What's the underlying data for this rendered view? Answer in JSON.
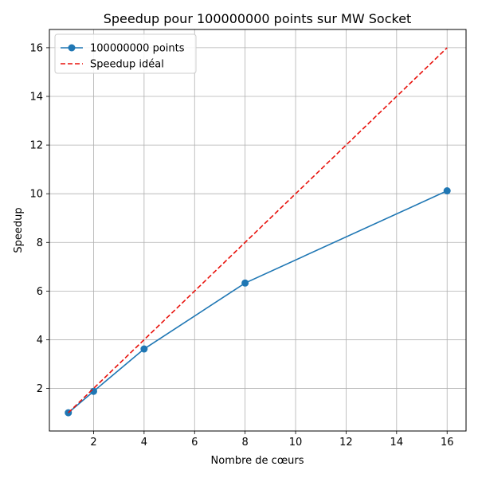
{
  "chart_data": {
    "type": "line",
    "title": "Speedup pour 100000000 points sur MW Socket",
    "xlabel": "Nombre de cœurs",
    "ylabel": "Speedup",
    "xlim": [
      0.25,
      16.75
    ],
    "ylim": [
      0.25,
      16.75
    ],
    "xticks": [
      2,
      4,
      6,
      8,
      10,
      12,
      14,
      16
    ],
    "yticks": [
      2,
      4,
      6,
      8,
      10,
      12,
      14,
      16
    ],
    "grid": true,
    "legend_position": "top-left",
    "series": [
      {
        "name": "100000000 points",
        "color": "#1f77b4",
        "style": "solid",
        "marker": "circle",
        "x": [
          1,
          2,
          4,
          8,
          16
        ],
        "y": [
          1.0,
          1.88,
          3.62,
          6.33,
          10.12
        ]
      },
      {
        "name": "Speedup idéal",
        "color": "#e8120c",
        "style": "dashed",
        "marker": "none",
        "x": [
          1,
          16
        ],
        "y": [
          1,
          16
        ]
      }
    ]
  }
}
